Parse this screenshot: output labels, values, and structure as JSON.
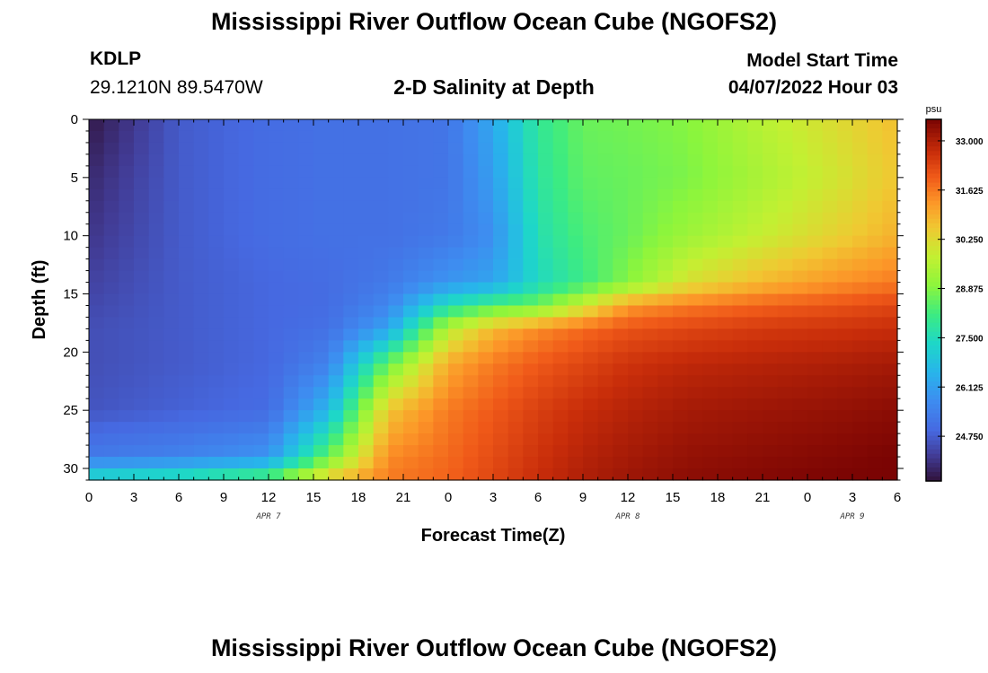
{
  "header": {
    "title": "Mississippi River Outflow Ocean Cube (NGOFS2)",
    "station_id": "KDLP",
    "station_coords": "29.1210N  89.5470W",
    "subtitle": "2-D Salinity at Depth",
    "model_label": "Model Start Time",
    "model_time": "04/07/2022 Hour 03"
  },
  "footer": {
    "title": "Mississippi River Outflow Ocean Cube (NGOFS2)"
  },
  "chart_data": {
    "type": "heatmap",
    "title": "2-D Salinity at Depth",
    "xlabel": "Forecast Time(Z)",
    "ylabel": "Depth (ft)",
    "x_ticks": [
      0,
      3,
      6,
      9,
      12,
      15,
      18,
      21,
      24,
      27,
      30,
      33,
      36,
      39,
      42,
      45,
      48,
      51,
      54
    ],
    "x_tick_labels": [
      "0",
      "3",
      "6",
      "9",
      "12",
      "15",
      "18",
      "21",
      "0",
      "3",
      "6",
      "9",
      "12",
      "15",
      "18",
      "21",
      "0",
      "3",
      "6"
    ],
    "xlim": [
      0,
      54
    ],
    "date_labels": [
      {
        "x": 12,
        "label": "APR 7"
      },
      {
        "x": 36,
        "label": "APR 8"
      },
      {
        "x": 51,
        "label": "APR 9"
      }
    ],
    "y_ticks": [
      0,
      5,
      10,
      15,
      20,
      25,
      30
    ],
    "ylim": [
      0,
      31
    ],
    "y_inverted": true,
    "colorbar": {
      "unit": "psu",
      "min": 23.5,
      "max": 33.6,
      "ticks": [
        33.0,
        31.625,
        30.25,
        28.875,
        27.5,
        26.125,
        24.75
      ],
      "tick_labels": [
        "33.000",
        "31.625",
        "30.250",
        "28.875",
        "27.500",
        "26.125",
        "24.750"
      ]
    },
    "salinity_grid": {
      "x": [
        0,
        6,
        12,
        16,
        20,
        24,
        27,
        30,
        33,
        36,
        40,
        45,
        50,
        54
      ],
      "y": [
        0,
        5,
        10,
        14,
        16,
        18,
        21,
        25,
        29,
        31
      ],
      "values": [
        [
          23.6,
          24.7,
          25.0,
          25.1,
          25.1,
          25.2,
          26.3,
          27.9,
          28.6,
          28.7,
          28.9,
          29.6,
          30.2,
          30.7
        ],
        [
          23.9,
          24.7,
          25.0,
          25.1,
          25.1,
          25.2,
          26.1,
          27.8,
          28.5,
          28.6,
          28.8,
          29.4,
          30.0,
          30.6
        ],
        [
          24.1,
          24.7,
          25.0,
          25.1,
          25.1,
          25.3,
          25.8,
          27.6,
          28.3,
          28.6,
          29.2,
          29.8,
          30.4,
          30.9
        ],
        [
          24.3,
          24.7,
          24.9,
          25.0,
          25.3,
          25.9,
          26.2,
          27.4,
          28.1,
          28.9,
          30.1,
          30.8,
          31.3,
          31.6
        ],
        [
          24.4,
          24.7,
          24.9,
          25.0,
          25.6,
          27.6,
          28.3,
          28.7,
          29.9,
          31.2,
          31.6,
          31.9,
          32.1,
          32.3
        ],
        [
          24.5,
          24.7,
          24.9,
          25.1,
          26.2,
          29.6,
          30.8,
          31.4,
          31.8,
          32.1,
          32.3,
          32.5,
          32.6,
          32.7
        ],
        [
          24.5,
          24.7,
          24.9,
          25.5,
          28.6,
          31.0,
          31.6,
          32.0,
          32.3,
          32.6,
          32.8,
          32.9,
          33.0,
          33.1
        ],
        [
          24.6,
          24.8,
          25.0,
          26.6,
          30.6,
          31.6,
          32.0,
          32.4,
          32.7,
          32.9,
          33.1,
          33.2,
          33.3,
          33.4
        ],
        [
          25.3,
          25.5,
          25.9,
          28.6,
          31.4,
          31.8,
          32.2,
          32.6,
          32.9,
          33.1,
          33.3,
          33.4,
          33.5,
          33.6
        ],
        [
          27.6,
          27.9,
          28.6,
          30.6,
          31.6,
          31.9,
          32.3,
          32.7,
          33.0,
          33.2,
          33.4,
          33.5,
          33.6,
          33.6
        ]
      ]
    }
  }
}
